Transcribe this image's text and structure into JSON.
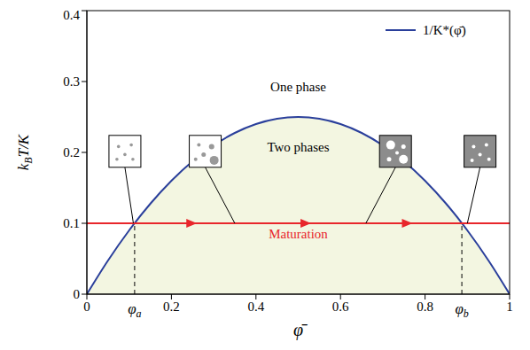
{
  "chart_data": {
    "type": "line",
    "xlabel": "φ̄",
    "ylabel_parts": [
      {
        "text": "k"
      },
      {
        "text": "B",
        "sub": true
      },
      {
        "text": "T/K"
      }
    ],
    "x": [
      0,
      0.05,
      0.1,
      0.15,
      0.2,
      0.25,
      0.3,
      0.35,
      0.4,
      0.45,
      0.5,
      0.55,
      0.6,
      0.65,
      0.7,
      0.75,
      0.8,
      0.85,
      0.9,
      0.95,
      1
    ],
    "series": [
      {
        "name": "1/K*(φ̄)",
        "color": "#2a3f9b",
        "values": [
          0,
          0.0475,
          0.09,
          0.1275,
          0.16,
          0.1875,
          0.21,
          0.2275,
          0.24,
          0.2475,
          0.25,
          0.2475,
          0.24,
          0.2275,
          0.21,
          0.1875,
          0.16,
          0.1275,
          0.09,
          0.0475,
          0
        ]
      }
    ],
    "xlim": [
      0,
      1
    ],
    "ylim": [
      0,
      0.4
    ],
    "xticks": [
      0,
      0.2,
      0.4,
      0.6,
      0.8,
      1
    ],
    "yticks": [
      0,
      0.1,
      0.2,
      0.3,
      0.4
    ],
    "legend": "upper right",
    "annotations": [
      {
        "text": "One phase",
        "x": 0.5,
        "y": 0.29
      },
      {
        "text": "Two phases",
        "x": 0.5,
        "y": 0.205
      }
    ],
    "maturation": {
      "text": "Maturation",
      "y": 0.1,
      "color": "#e8262b",
      "arrows": [
        0.25,
        0.52,
        0.76
      ]
    },
    "vlines": [
      {
        "x": 0.113,
        "label": "φ",
        "sub": "a",
        "line_style": "dashed"
      },
      {
        "x": 0.887,
        "label": "φ",
        "sub": "b",
        "line_style": "dashed"
      }
    ]
  }
}
